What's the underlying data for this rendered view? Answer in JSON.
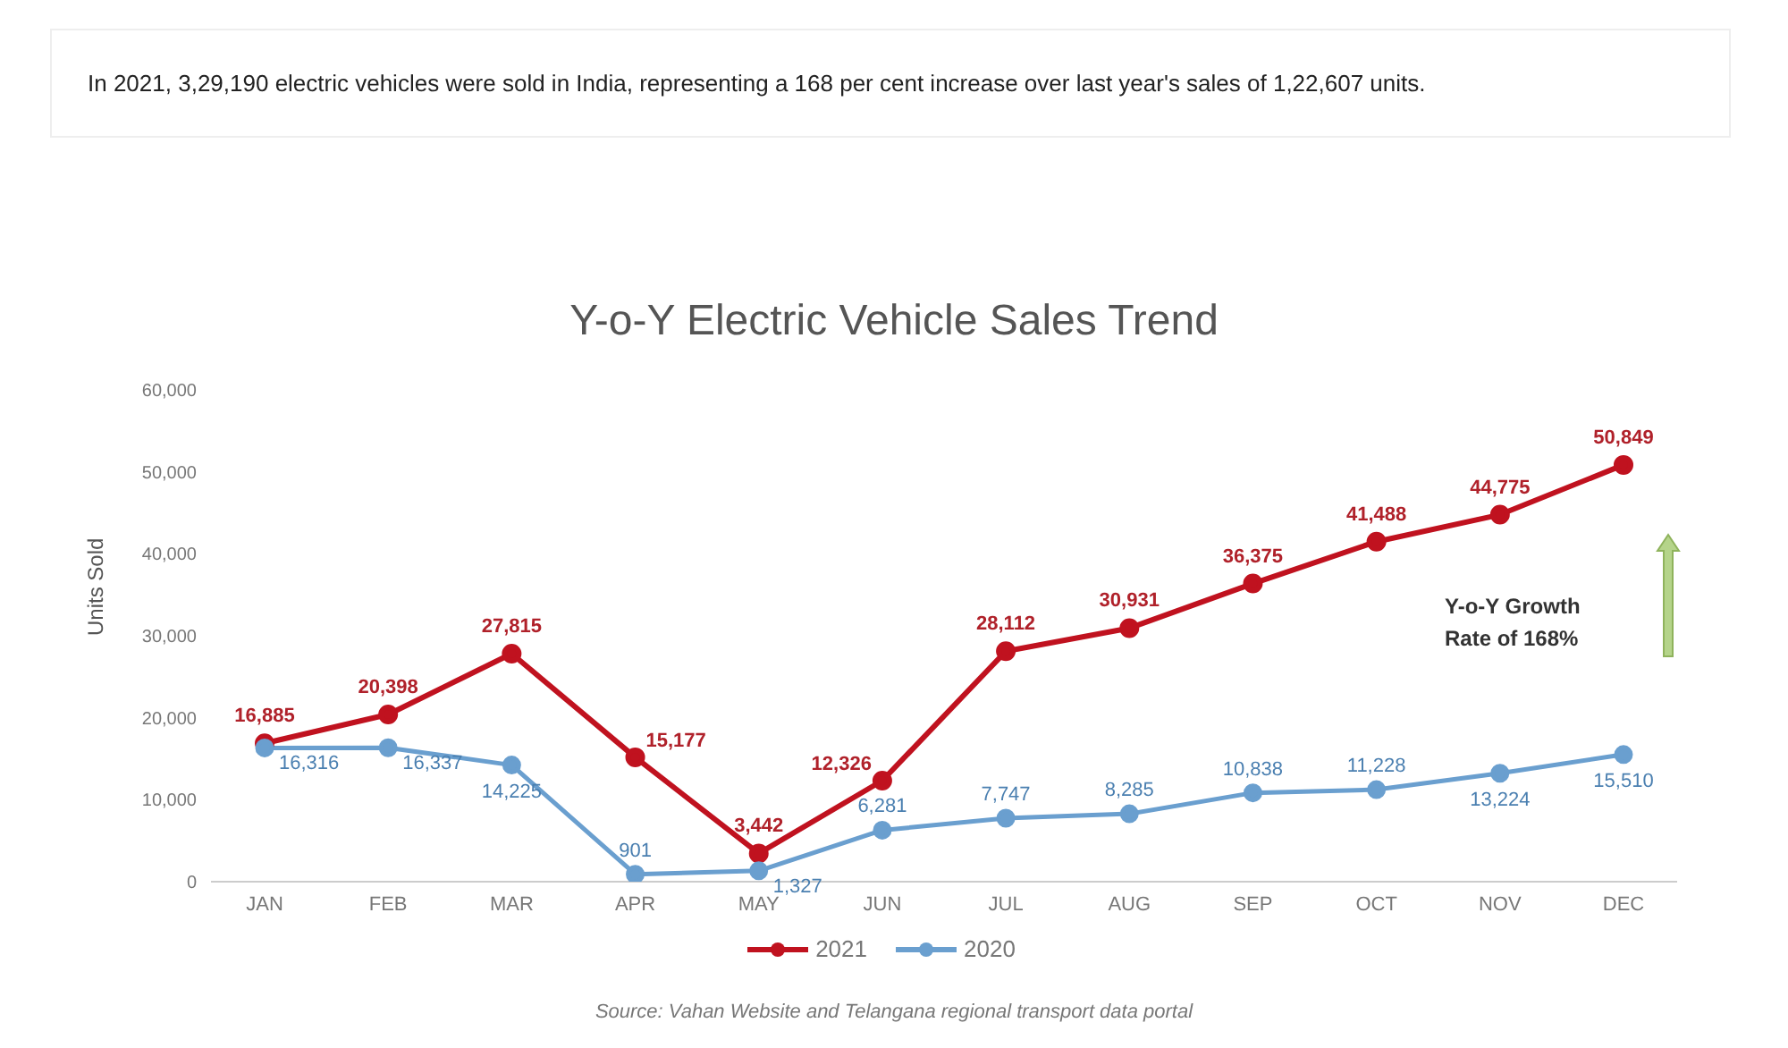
{
  "chart_data": {
    "type": "line",
    "title": "Y-o-Y Electric Vehicle Sales Trend",
    "ylabel": "Units Sold",
    "annotations": [
      "In 2021, 3,29,190 electric vehicles were sold in India, representing a 168 per cent increase over last year's sales of 1,22,607 units.",
      "Y-o-Y Growth Rate of 168%",
      "Source: Vahan Website and Telangana regional transport data portal"
    ],
    "categories": [
      "JAN",
      "FEB",
      "MAR",
      "APR",
      "MAY",
      "JUN",
      "JUL",
      "AUG",
      "SEP",
      "OCT",
      "NOV",
      "DEC"
    ],
    "series": [
      {
        "name": "2021",
        "color": "#c0121f",
        "values": [
          16885,
          20398,
          27815,
          15177,
          3442,
          12326,
          28112,
          30931,
          36375,
          41488,
          44775,
          50849
        ],
        "value_labels": [
          "16,885",
          "20,398",
          "27,815",
          "15,177",
          "3,442",
          "12,326",
          "28,112",
          "30,931",
          "36,375",
          "41,488",
          "44,775",
          "50,849"
        ]
      },
      {
        "name": "2020",
        "color": "#6a9fcf",
        "values": [
          16316,
          16337,
          14225,
          901,
          1327,
          6281,
          7747,
          8285,
          10838,
          11228,
          13224,
          15510
        ],
        "value_labels": [
          "16,316",
          "16,337",
          "14,225",
          "901",
          "1,327",
          "6,281",
          "7,747",
          "8,285",
          "10,838",
          "11,228",
          "13,224",
          "15,510"
        ]
      }
    ],
    "ylim": [
      0,
      60000
    ],
    "yticks": [
      0,
      {
        "value": 10000,
        "label": "10,000"
      },
      {
        "value": 20000,
        "label": "20,000"
      },
      {
        "value": 30000,
        "label": "30,000"
      },
      {
        "value": 40000,
        "label": "40,000"
      },
      {
        "value": 50000,
        "label": "50,000"
      },
      {
        "value": 60000,
        "label": "60,000"
      }
    ],
    "grid": false,
    "legend": "bottom",
    "marker": "circle",
    "line_style": "solid"
  }
}
